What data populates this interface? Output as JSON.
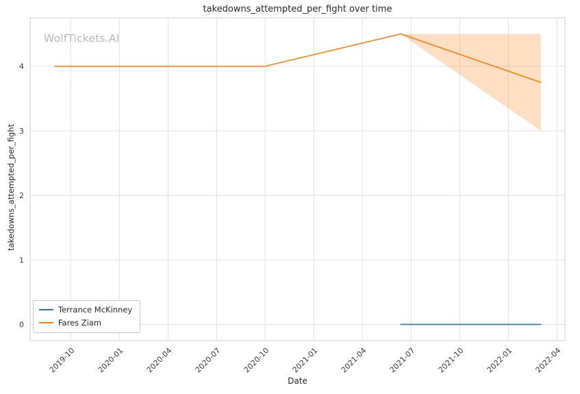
{
  "chart_data": {
    "type": "line",
    "title": "takedowns_attempted_per_fight over time",
    "xlabel": "Date",
    "ylabel": "takedowns_attempted_per_fight",
    "watermark": "WolfTickets.AI",
    "grid": true,
    "legend_position": "lower left",
    "x_tick_labels": [
      "2019-10",
      "2020-01",
      "2020-04",
      "2020-07",
      "2020-10",
      "2021-01",
      "2021-04",
      "2021-07",
      "2021-10",
      "2022-01",
      "2022-04"
    ],
    "y_tick_labels": [
      "0",
      "1",
      "2",
      "3",
      "4"
    ],
    "xlim": [
      "2019-07-16",
      "2022-04-16"
    ],
    "ylim": [
      -0.25,
      4.75
    ],
    "colors": {
      "grid": "#e2e2e2",
      "spine": "#d9d9d9",
      "text": "#262626",
      "tick_text": "#3a3a3a",
      "watermark": "#b8b8b8"
    },
    "series": [
      {
        "name": "Terrance McKinney",
        "color": "#1f77b4",
        "x": [
          "2021-06-12",
          "2022-03-01"
        ],
        "y": [
          0.0,
          0.0
        ]
      },
      {
        "name": "Fares Ziam",
        "color": "#ff7f0e",
        "x": [
          "2019-09-01",
          "2020-10-01",
          "2021-06-12",
          "2022-03-01"
        ],
        "y": [
          4.0,
          4.0,
          4.5,
          3.75
        ],
        "band": {
          "x": [
            "2021-06-12",
            "2022-03-01"
          ],
          "upper": [
            4.5,
            4.5
          ],
          "lower": [
            4.5,
            3.0
          ],
          "fill_opacity": 0.25
        }
      }
    ]
  }
}
